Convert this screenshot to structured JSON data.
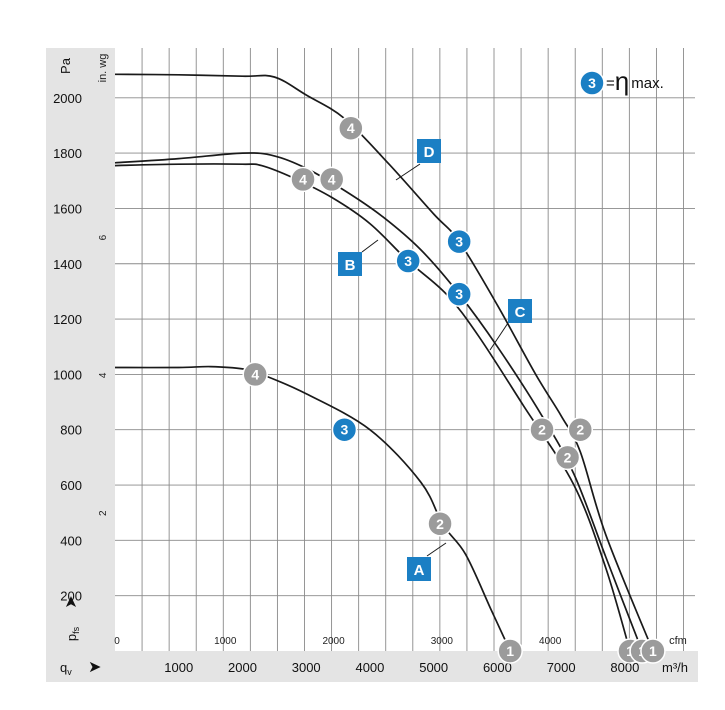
{
  "chart_data": {
    "type": "line",
    "ylabel": "Pa",
    "ylabel_secondary": "in. wg",
    "xlabel_symbol": "q",
    "xlabel_subscript": "v",
    "x_unit": "m³/h",
    "x_unit_secondary": "cfm",
    "y_symbol": "p",
    "y_symbol_subscript": "fs",
    "x_ticks": [
      "1000",
      "2000",
      "3000",
      "4000",
      "5000",
      "6000",
      "7000",
      "8000"
    ],
    "x_ticks_cfm": [
      "0",
      "1000",
      "2000",
      "3000",
      "4000"
    ],
    "y_ticks": [
      "200",
      "400",
      "600",
      "800",
      "1000",
      "1200",
      "1400",
      "1600",
      "1800",
      "2000"
    ],
    "y_ticks_inwg": [
      "2",
      "4",
      "6"
    ],
    "xlim": [
      0,
      9100
    ],
    "ylim": [
      0,
      2180
    ],
    "grid": true,
    "legend": {
      "marker": "3",
      "text": "=",
      "symbol": "η",
      "suffix": "max.",
      "position": "top-right"
    },
    "series": [
      {
        "name": "A",
        "x": [
          0,
          1000,
          1500,
          2000,
          2300,
          3000,
          4000,
          4800,
          5150,
          5500,
          5900,
          6200
        ],
        "y": [
          1025,
          1025,
          1028,
          1020,
          1000,
          930,
          800,
          610,
          455,
          350,
          150,
          0
        ],
        "markers": [
          {
            "label": "4",
            "x": 2200,
            "y": 1000
          },
          {
            "label": "3",
            "x": 3600,
            "y": 800
          },
          {
            "label": "2",
            "x": 5100,
            "y": 460
          },
          {
            "label": "1",
            "x": 6200,
            "y": 0
          }
        ]
      },
      {
        "name": "B",
        "x": [
          0,
          1000,
          2000,
          2300,
          2800,
          3400,
          4000,
          4600,
          5200,
          5700,
          6400,
          7200,
          7700,
          8080
        ],
        "y": [
          1755,
          1760,
          1760,
          1755,
          1710,
          1640,
          1545,
          1410,
          1290,
          1140,
          890,
          600,
          300,
          0
        ],
        "markers": [
          {
            "label": "4",
            "x": 2950,
            "y": 1705
          },
          {
            "label": "3",
            "x": 4600,
            "y": 1410
          },
          {
            "label": "2",
            "x": 6700,
            "y": 800
          },
          {
            "label": "1",
            "x": 8080,
            "y": 0
          }
        ]
      },
      {
        "name": "C",
        "x": [
          0,
          1000,
          2000,
          2500,
          3000,
          3600,
          4200,
          4800,
          5400,
          6000,
          6700,
          7200,
          7700,
          8270
        ],
        "y": [
          1765,
          1780,
          1800,
          1790,
          1745,
          1665,
          1570,
          1450,
          1290,
          1100,
          850,
          640,
          340,
          0
        ],
        "markers": [
          {
            "label": "4",
            "x": 3400,
            "y": 1705
          },
          {
            "label": "3",
            "x": 5400,
            "y": 1290
          },
          {
            "label": "2",
            "x": 7100,
            "y": 700
          },
          {
            "label": "1",
            "x": 8270,
            "y": 0
          }
        ]
      },
      {
        "name": "D",
        "x": [
          0,
          1000,
          2000,
          2500,
          3000,
          3600,
          4300,
          5000,
          5400,
          6000,
          6600,
          7000,
          7300,
          7700,
          8440
        ],
        "y": [
          2085,
          2083,
          2078,
          2075,
          2010,
          1925,
          1760,
          1580,
          1480,
          1250,
          1000,
          850,
          720,
          420,
          0
        ],
        "markers": [
          {
            "label": "4",
            "x": 3700,
            "y": 1890
          },
          {
            "label": "3",
            "x": 5400,
            "y": 1480
          },
          {
            "label": "2",
            "x": 7300,
            "y": 800
          },
          {
            "label": "1",
            "x": 8440,
            "y": 0
          }
        ]
      }
    ]
  }
}
